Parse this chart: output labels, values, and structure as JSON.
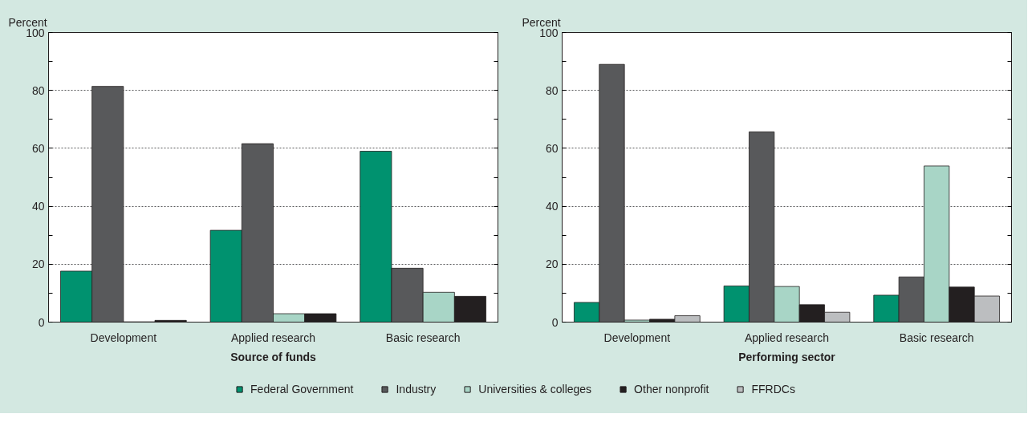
{
  "chart_data": [
    {
      "type": "bar",
      "ylabel": "Percent",
      "xlabel": "Source of funds",
      "categories": [
        "Development",
        "Applied research",
        "Basic research"
      ],
      "ylim": [
        0,
        100
      ],
      "yticks": [
        0,
        {
          "value": 10,
          "label": null
        },
        20,
        {
          "value": 30,
          "label": null
        },
        40,
        {
          "value": 50,
          "label": null
        },
        60,
        {
          "value": 70,
          "label": null
        },
        80,
        {
          "value": 90,
          "label": null
        },
        100
      ],
      "grid": "y",
      "series": [
        {
          "color": "#00926f",
          "values": [
            17.6,
            31.7,
            59.0
          ]
        },
        {
          "color": "#58595b",
          "values": [
            81.4,
            61.6,
            18.6
          ]
        },
        {
          "color": "#a8d5c6",
          "values": [
            0.1,
            2.9,
            10.3
          ]
        },
        {
          "color": "#231f20",
          "values": [
            0.6,
            2.9,
            8.9
          ]
        }
      ]
    },
    {
      "type": "bar",
      "ylabel": "Percent",
      "xlabel": "Performing sector",
      "categories": [
        "Development",
        "Applied research",
        "Basic research"
      ],
      "ylim": [
        0,
        100
      ],
      "yticks": [
        0,
        {
          "value": 10,
          "label": null
        },
        20,
        {
          "value": 30,
          "label": null
        },
        40,
        {
          "value": 50,
          "label": null
        },
        60,
        {
          "value": 70,
          "label": null
        },
        80,
        {
          "value": 90,
          "label": null
        },
        100
      ],
      "grid": "y",
      "legend": "bottom",
      "series": [
        {
          "name": "Federal Government",
          "color": "#00926f",
          "values": [
            6.8,
            12.5,
            9.3
          ]
        },
        {
          "name": "Industry",
          "color": "#58595b",
          "values": [
            89.0,
            65.7,
            15.6
          ]
        },
        {
          "name": "Universities & colleges",
          "color": "#a8d5c6",
          "values": [
            0.7,
            12.3,
            53.9
          ]
        },
        {
          "name": "Other nonprofit",
          "color": "#231f20",
          "values": [
            1.0,
            6.0,
            12.1
          ]
        },
        {
          "name": "FFRDCs",
          "color": "#bcbec0",
          "values": [
            2.2,
            3.4,
            9.0
          ]
        }
      ]
    }
  ]
}
